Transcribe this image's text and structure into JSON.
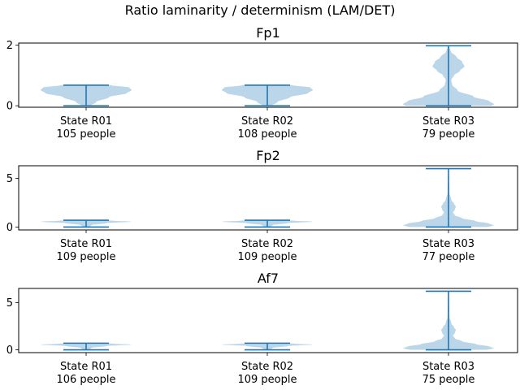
{
  "figure": {
    "title": "Ratio laminarity / determinism (LAM/DET)"
  },
  "chart_data": [
    {
      "type": "violin",
      "title": "Fp1",
      "ylim": [
        -0.05,
        2.07
      ],
      "yticks": [
        0,
        2
      ],
      "categories": [
        {
          "label": "State R01",
          "count": "105 people"
        },
        {
          "label": "State R02",
          "count": "108 people"
        },
        {
          "label": "State R03",
          "count": "79 people"
        }
      ],
      "violins": [
        {
          "min": 0,
          "max": 0.68,
          "profile": [
            [
              0,
              0.1
            ],
            [
              0.12,
              0.22
            ],
            [
              0.28,
              0.5
            ],
            [
              0.42,
              0.9
            ],
            [
              0.52,
              1.0
            ],
            [
              0.6,
              0.95
            ],
            [
              0.68,
              0.55
            ]
          ]
        },
        {
          "min": 0,
          "max": 0.68,
          "profile": [
            [
              0,
              0.1
            ],
            [
              0.12,
              0.22
            ],
            [
              0.28,
              0.5
            ],
            [
              0.42,
              0.9
            ],
            [
              0.52,
              1.0
            ],
            [
              0.6,
              0.95
            ],
            [
              0.68,
              0.55
            ]
          ]
        },
        {
          "min": 0,
          "max": 1.98,
          "profile": [
            [
              0,
              0.95
            ],
            [
              0.05,
              1.0
            ],
            [
              0.15,
              0.9
            ],
            [
              0.3,
              0.55
            ],
            [
              0.5,
              0.2
            ],
            [
              0.7,
              0.08
            ],
            [
              0.85,
              0.06
            ],
            [
              1.0,
              0.12
            ],
            [
              1.15,
              0.25
            ],
            [
              1.3,
              0.35
            ],
            [
              1.45,
              0.3
            ],
            [
              1.6,
              0.18
            ],
            [
              1.8,
              0.05
            ],
            [
              1.98,
              0.01
            ]
          ]
        }
      ]
    },
    {
      "type": "violin",
      "title": "Fp2",
      "ylim": [
        -0.3,
        6.3
      ],
      "yticks": [
        0,
        5
      ],
      "categories": [
        {
          "label": "State R01",
          "count": "109 people"
        },
        {
          "label": "State R02",
          "count": "109 people"
        },
        {
          "label": "State R03",
          "count": "77 people"
        }
      ],
      "violins": [
        {
          "min": 0,
          "max": 0.7,
          "profile": [
            [
              0,
              0.06
            ],
            [
              0.2,
              0.12
            ],
            [
              0.4,
              0.45
            ],
            [
              0.55,
              1.0
            ],
            [
              0.65,
              0.6
            ],
            [
              0.7,
              0.2
            ]
          ]
        },
        {
          "min": 0,
          "max": 0.7,
          "profile": [
            [
              0,
              0.06
            ],
            [
              0.2,
              0.12
            ],
            [
              0.4,
              0.45
            ],
            [
              0.55,
              1.0
            ],
            [
              0.65,
              0.6
            ],
            [
              0.7,
              0.2
            ]
          ]
        },
        {
          "min": 0,
          "max": 6.0,
          "profile": [
            [
              0,
              0.85
            ],
            [
              0.15,
              1.0
            ],
            [
              0.35,
              0.9
            ],
            [
              0.6,
              0.6
            ],
            [
              0.9,
              0.3
            ],
            [
              1.2,
              0.14
            ],
            [
              1.5,
              0.1
            ],
            [
              1.8,
              0.14
            ],
            [
              2.1,
              0.16
            ],
            [
              2.4,
              0.12
            ],
            [
              2.8,
              0.06
            ],
            [
              3.5,
              0.02
            ],
            [
              6.0,
              0.005
            ]
          ]
        }
      ]
    },
    {
      "type": "violin",
      "title": "Af7",
      "ylim": [
        -0.3,
        6.5
      ],
      "yticks": [
        0,
        5
      ],
      "categories": [
        {
          "label": "State R01",
          "count": "106 people"
        },
        {
          "label": "State R02",
          "count": "109 people"
        },
        {
          "label": "State R03",
          "count": "75 people"
        }
      ],
      "violins": [
        {
          "min": 0,
          "max": 0.7,
          "profile": [
            [
              0,
              0.06
            ],
            [
              0.2,
              0.12
            ],
            [
              0.4,
              0.45
            ],
            [
              0.55,
              1.0
            ],
            [
              0.65,
              0.6
            ],
            [
              0.7,
              0.2
            ]
          ]
        },
        {
          "min": 0,
          "max": 0.7,
          "profile": [
            [
              0,
              0.06
            ],
            [
              0.2,
              0.12
            ],
            [
              0.4,
              0.45
            ],
            [
              0.55,
              1.0
            ],
            [
              0.65,
              0.6
            ],
            [
              0.7,
              0.2
            ]
          ]
        },
        {
          "min": 0,
          "max": 6.2,
          "profile": [
            [
              0,
              0.85
            ],
            [
              0.15,
              1.0
            ],
            [
              0.35,
              0.9
            ],
            [
              0.6,
              0.6
            ],
            [
              0.9,
              0.3
            ],
            [
              1.2,
              0.14
            ],
            [
              1.5,
              0.1
            ],
            [
              1.8,
              0.14
            ],
            [
              2.1,
              0.16
            ],
            [
              2.4,
              0.12
            ],
            [
              2.8,
              0.06
            ],
            [
              3.5,
              0.02
            ],
            [
              6.2,
              0.005
            ]
          ]
        }
      ]
    }
  ]
}
